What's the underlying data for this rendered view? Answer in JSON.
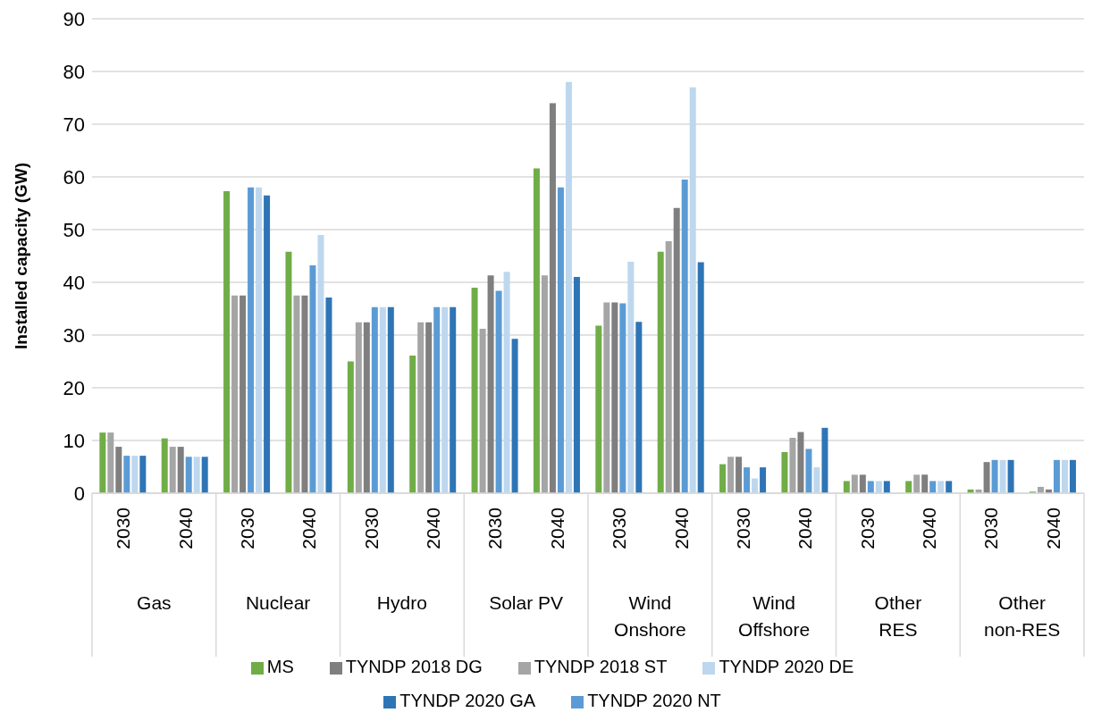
{
  "chart_data": {
    "type": "bar",
    "ylabel": "Installed capacity (GW)",
    "categories": [
      "2030",
      "2040",
      "2030",
      "2040",
      "2030",
      "2040",
      "2030",
      "2040",
      "2030",
      "2040",
      "2030",
      "2040",
      "2030",
      "2040",
      "2030",
      "2040"
    ],
    "annotations": [
      "Gas",
      "Nuclear",
      "Hydro",
      "Solar PV",
      "Wind Onshore",
      "Wind Offshore",
      "Other RES",
      "Other non-RES"
    ],
    "series": [
      {
        "name": "MS",
        "color": "#70ad47",
        "values": [
          11.5,
          10.4,
          57.3,
          45.8,
          25,
          26.1,
          39,
          61.6,
          31.8,
          45.8,
          5.5,
          7.8,
          2.3,
          2.3,
          0.7,
          0.3
        ]
      },
      {
        "name": "TYNDP 2018 ST",
        "color": "#a5a5a5",
        "values": [
          11.5,
          8.8,
          37.5,
          37.5,
          32.4,
          32.4,
          31.2,
          41.3,
          36.2,
          47.8,
          6.9,
          10.5,
          3.5,
          3.5,
          0.7,
          1.2
        ]
      },
      {
        "name": "TYNDP 2018 DG",
        "color": "#7f7f7f",
        "values": [
          8.8,
          8.8,
          37.5,
          37.5,
          32.4,
          32.4,
          41.3,
          74,
          36.2,
          54.1,
          6.9,
          11.6,
          3.5,
          3.5,
          5.9,
          0.7
        ]
      },
      {
        "name": "TYNDP 2020 NT",
        "color": "#5b9bd5",
        "values": [
          7.1,
          6.9,
          58,
          43.2,
          35.3,
          35.3,
          38.4,
          58,
          36,
          59.5,
          4.9,
          8.4,
          2.3,
          2.3,
          6.3,
          6.3
        ]
      },
      {
        "name": "TYNDP 2020 DE",
        "color": "#bdd7ee",
        "values": [
          7.1,
          6.9,
          58,
          49,
          35.3,
          35.3,
          42,
          78,
          43.9,
          77,
          2.8,
          4.9,
          2.3,
          2.3,
          6.3,
          6.3
        ]
      },
      {
        "name": "TYNDP 2020 GA",
        "color": "#2e75b6",
        "values": [
          7.1,
          6.9,
          56.5,
          37.1,
          35.3,
          35.3,
          29.3,
          41,
          32.5,
          43.8,
          4.9,
          12.4,
          2.3,
          2.3,
          6.3,
          6.3
        ]
      }
    ],
    "ylim": [
      0,
      90
    ],
    "yticks": [
      0,
      10,
      20,
      30,
      40,
      50,
      60,
      70,
      80,
      90
    ],
    "grid": "y",
    "legend": "bottom"
  }
}
